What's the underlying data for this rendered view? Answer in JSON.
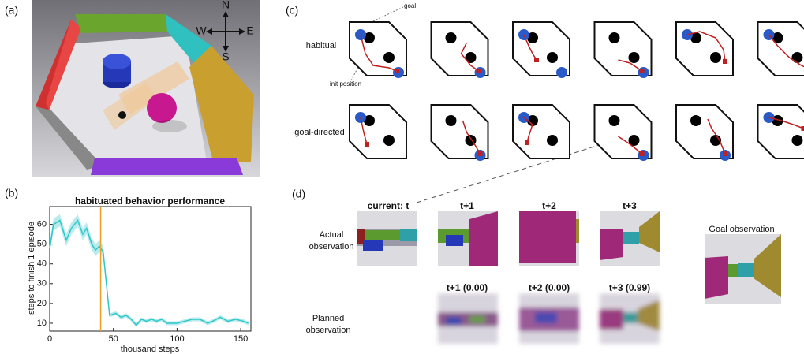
{
  "panels": {
    "a": {
      "label": "(a)",
      "compass": {
        "n": "N",
        "s": "S",
        "w": "W",
        "e": "E"
      }
    },
    "b": {
      "label": "(b)"
    },
    "c": {
      "label": "(c)",
      "rows": [
        "habitual",
        "goal-directed"
      ],
      "goal_note": "goal",
      "init_note": "init position"
    },
    "d": {
      "label": "(d)",
      "actual_headers": [
        "current: t",
        "t+1",
        "t+2",
        "t+3"
      ],
      "planned_headers": [
        "t+1 (0.00)",
        "t+2 (0.00)",
        "t+3 (0.99)"
      ],
      "actual_label": [
        "Actual",
        "observation"
      ],
      "planned_label": [
        "Planned",
        "observation"
      ],
      "goal_label": "Goal observation"
    }
  },
  "chart_data": {
    "type": "line",
    "title": "habituated behavior performance",
    "x_label": "thousand steps",
    "y_label": "steps to finish 1 episode",
    "x": [
      0,
      3,
      8,
      13,
      17,
      22,
      26,
      29,
      33,
      36,
      39,
      42,
      47,
      52,
      56,
      60,
      64,
      68,
      72,
      76,
      80,
      84,
      88,
      92,
      96,
      100,
      106,
      112,
      118,
      124,
      128,
      134,
      140,
      146,
      152,
      156
    ],
    "series": [
      {
        "color": "#2ec8c8",
        "band_color": "#a8e6ea",
        "values": [
          48,
          60,
          62,
          52,
          58,
          62,
          55,
          58,
          50,
          47,
          49,
          46,
          14,
          15,
          13,
          14,
          12,
          9,
          12,
          11,
          12,
          11,
          12,
          10,
          10,
          10,
          11,
          12,
          12,
          10,
          11,
          13,
          11,
          12,
          11,
          10
        ],
        "error": [
          3,
          3,
          3,
          3,
          3,
          3,
          3,
          3,
          3,
          3,
          3,
          3,
          1,
          1,
          1,
          1,
          1,
          1,
          1,
          1,
          1,
          1,
          1,
          1,
          1,
          1,
          1,
          1,
          1,
          1,
          1,
          1,
          1,
          1,
          1,
          1
        ]
      }
    ],
    "vline": 40,
    "vline_color": "#f0a020",
    "xlim": [
      0,
      158
    ],
    "ylim": [
      6,
      69
    ],
    "xticks": [
      0,
      50,
      100,
      150
    ],
    "yticks": [
      10,
      20,
      30,
      40,
      50,
      60
    ]
  }
}
